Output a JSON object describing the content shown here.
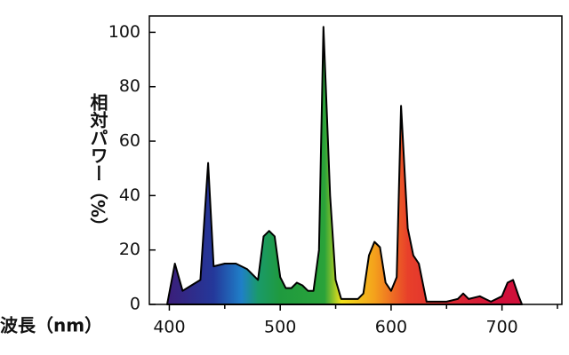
{
  "chart_data": {
    "type": "area",
    "y_label": "相対パワー（%）",
    "x_label": "波長（nm）",
    "x": [
      398,
      405,
      412,
      420,
      428,
      435,
      440,
      450,
      460,
      470,
      480,
      485,
      490,
      495,
      500,
      505,
      510,
      515,
      520,
      525,
      530,
      535,
      539,
      545,
      550,
      555,
      560,
      570,
      575,
      580,
      585,
      590,
      595,
      600,
      605,
      609,
      615,
      620,
      625,
      630,
      632,
      640,
      650,
      660,
      665,
      670,
      680,
      685,
      690,
      700,
      705,
      710,
      715,
      718
    ],
    "values": [
      0,
      15,
      5,
      7,
      9,
      52,
      14,
      15,
      15,
      13,
      9,
      25,
      27,
      25,
      10,
      6,
      6,
      8,
      7,
      5,
      5,
      20,
      102,
      40,
      9,
      2,
      2,
      2,
      4,
      18,
      23,
      21,
      8,
      5,
      10,
      73,
      28,
      18,
      15,
      5,
      1,
      1,
      1,
      2,
      4,
      2,
      3,
      2,
      1,
      3,
      8,
      9,
      3,
      0
    ],
    "xlim": [
      382,
      754
    ],
    "ylim": [
      0,
      106
    ],
    "xticks": [
      400,
      500,
      600,
      700
    ],
    "x_minor_ticks": [
      450,
      550,
      650,
      750
    ],
    "yticks": [
      0,
      20,
      40,
      60,
      80,
      100
    ],
    "line_color": "#000000",
    "gradient": [
      {
        "x": 400,
        "color": "#3a1f7a"
      },
      {
        "x": 440,
        "color": "#24389a"
      },
      {
        "x": 465,
        "color": "#1f7fc8"
      },
      {
        "x": 480,
        "color": "#1a9a6a"
      },
      {
        "x": 500,
        "color": "#1f9a3e"
      },
      {
        "x": 540,
        "color": "#2aa33a"
      },
      {
        "x": 555,
        "color": "#f2e21a"
      },
      {
        "x": 585,
        "color": "#f4a11c"
      },
      {
        "x": 615,
        "color": "#e8402a"
      },
      {
        "x": 700,
        "color": "#d0103a"
      }
    ]
  }
}
